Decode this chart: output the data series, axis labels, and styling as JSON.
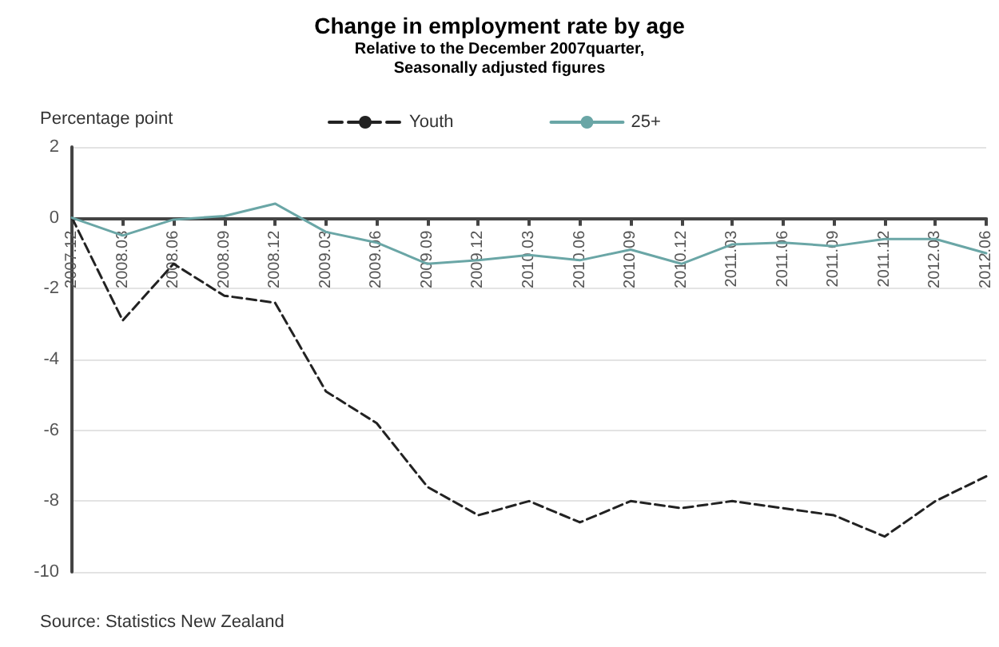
{
  "chart_data": {
    "type": "line",
    "title": "Change in employment rate by age",
    "subtitle": "Relative to the December 2007quarter,\nSeasonally adjusted figures",
    "ylabel": "Percentage point",
    "categories": [
      "2007.12",
      "2008.03",
      "2008.06",
      "2008.09",
      "2008.12",
      "2009.03",
      "2009.06",
      "2009.09",
      "2009.12",
      "2010.03",
      "2010.06",
      "2010.09",
      "2010.12",
      "2011.03",
      "2011.06",
      "2011.09",
      "2011.12",
      "2012.03",
      "2012.06"
    ],
    "series": [
      {
        "name": "Youth",
        "color": "#222222",
        "line_style": "dashed",
        "values": [
          0,
          -2.9,
          -1.3,
          -2.2,
          -2.4,
          -4.9,
          -5.8,
          -7.6,
          -8.4,
          -8.0,
          -8.6,
          -8.0,
          -8.2,
          -8.0,
          -8.2,
          -8.4,
          -9.0,
          -8.0,
          -7.3
        ]
      },
      {
        "name": "25+",
        "color": "#6aa6a6",
        "line_style": "solid",
        "values": [
          0,
          -0.5,
          -0.05,
          0.05,
          0.4,
          -0.4,
          -0.7,
          -1.3,
          -1.2,
          -1.05,
          -1.2,
          -0.9,
          -1.3,
          -0.75,
          -0.7,
          -0.8,
          -0.6,
          -0.6,
          -1.0
        ]
      }
    ],
    "ylim": [
      -10,
      2
    ],
    "yticks": [
      -10,
      -8,
      -6,
      -4,
      -2,
      0,
      2
    ],
    "grid": "y",
    "legend": "top",
    "marker": "none",
    "annotations": [
      "Source: Statistics New Zealand"
    ]
  }
}
